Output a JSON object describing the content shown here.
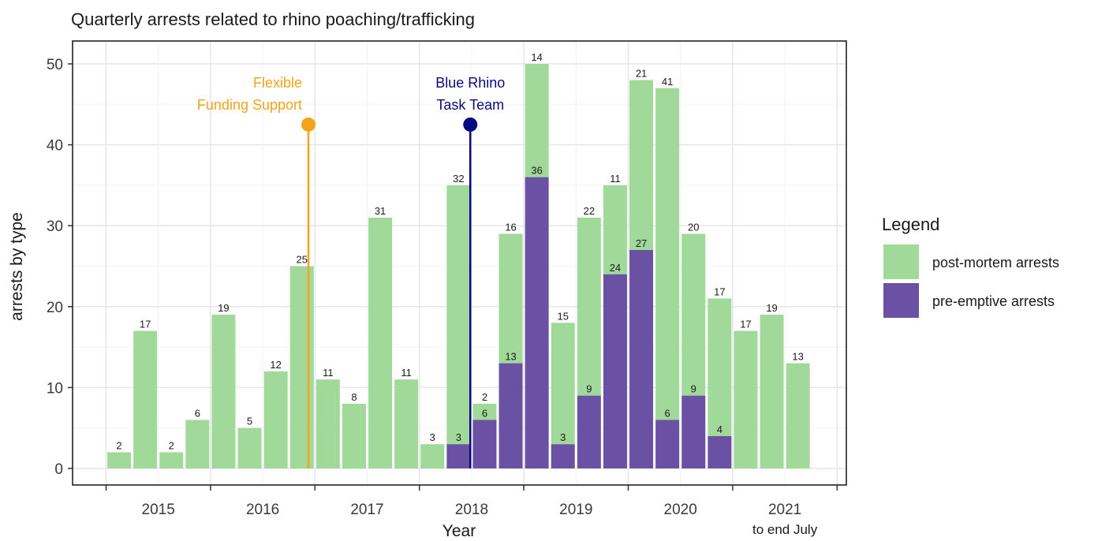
{
  "chart_data": {
    "type": "bar",
    "title": "Quarterly arrests related to rhino poaching/trafficking",
    "xlabel": "Year",
    "ylabel": "arrests by type",
    "ylim": [
      0,
      50
    ],
    "y_ticks": [
      0,
      10,
      20,
      30,
      40,
      50
    ],
    "x_year_labels": [
      "2015",
      "2016",
      "2017",
      "2018",
      "2019",
      "2020",
      "2021"
    ],
    "x_year_sublabel": "to end July",
    "grid": true,
    "legend": {
      "title": "Legend",
      "position": "right",
      "entries": [
        {
          "name": "post-mortem arrests",
          "color": "#a1d99b"
        },
        {
          "name": "pre-emptive arrests",
          "color": "#6a51a3"
        }
      ]
    },
    "series": [
      {
        "name": "post-mortem arrests",
        "color": "#a1d99b",
        "values": [
          2,
          17,
          2,
          6,
          19,
          5,
          12,
          25,
          11,
          8,
          31,
          11,
          3,
          32,
          2,
          16,
          14,
          15,
          22,
          11,
          21,
          41,
          20,
          17,
          17,
          19,
          13
        ]
      },
      {
        "name": "pre-emptive arrests",
        "color": "#6a51a3",
        "values": [
          0,
          0,
          0,
          0,
          0,
          0,
          0,
          0,
          0,
          0,
          0,
          0,
          0,
          3,
          6,
          13,
          36,
          3,
          9,
          24,
          27,
          6,
          9,
          4,
          0,
          0,
          0
        ]
      }
    ],
    "annotations": [
      {
        "lines": [
          "Flexible",
          "Funding Support"
        ],
        "quarter_index": 7.75,
        "y": 42.5,
        "color": "#f5a31a"
      },
      {
        "lines": [
          "Blue Rhino",
          "Task Team"
        ],
        "quarter_index": 13.95,
        "y": 42.5,
        "color": "#0a0a80"
      }
    ]
  }
}
